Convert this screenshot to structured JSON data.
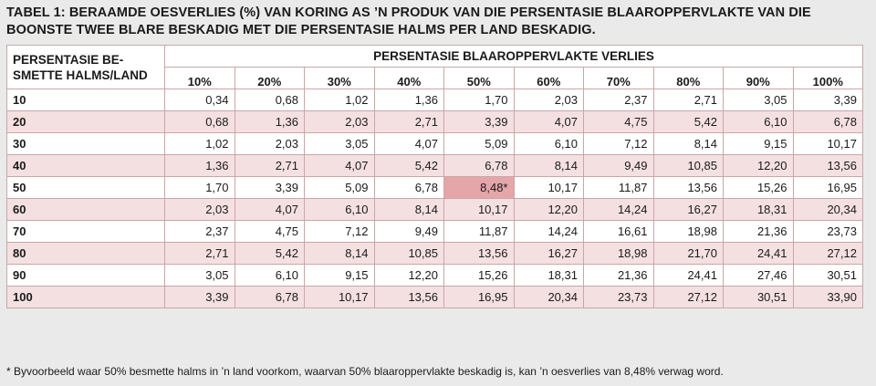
{
  "caption": "TABEL 1: BERAAMDE OESVERLIES (%) VAN KORING AS ’N PRODUK VAN DIE PERSENTASIE BLAAROPPERVLAKTE VAN DIE BOONSTE TWEE BLARE BESKADIG MET DIE PERSENTASIE HALMS PER LAND BESKADIG.",
  "table": {
    "row_header_title": "PERSENTASIE BE-SMETTE HALMS/LAND",
    "column_group_title": "PERSENTASIE BLAAROPPERVLAKTE VERLIES",
    "columns": [
      "10%",
      "20%",
      "30%",
      "40%",
      "50%",
      "60%",
      "70%",
      "80%",
      "90%",
      "100%"
    ],
    "rows": [
      {
        "label": "10",
        "values": [
          "0,34",
          "0,68",
          "1,02",
          "1,36",
          "1,70",
          "2,03",
          "2,37",
          "2,71",
          "3,05",
          "3,39"
        ]
      },
      {
        "label": "20",
        "values": [
          "0,68",
          "1,36",
          "2,03",
          "2,71",
          "3,39",
          "4,07",
          "4,75",
          "5,42",
          "6,10",
          "6,78"
        ]
      },
      {
        "label": "30",
        "values": [
          "1,02",
          "2,03",
          "3,05",
          "4,07",
          "5,09",
          "6,10",
          "7,12",
          "8,14",
          "9,15",
          "10,17"
        ]
      },
      {
        "label": "40",
        "values": [
          "1,36",
          "2,71",
          "4,07",
          "5,42",
          "6,78",
          "8,14",
          "9,49",
          "10,85",
          "12,20",
          "13,56"
        ]
      },
      {
        "label": "50",
        "values": [
          "1,70",
          "3,39",
          "5,09",
          "6,78",
          "8,48*",
          "10,17",
          "11,87",
          "13,56",
          "15,26",
          "16,95"
        ]
      },
      {
        "label": "60",
        "values": [
          "2,03",
          "4,07",
          "6,10",
          "8,14",
          "10,17",
          "12,20",
          "14,24",
          "16,27",
          "18,31",
          "20,34"
        ]
      },
      {
        "label": "70",
        "values": [
          "2,37",
          "4,75",
          "7,12",
          "9,49",
          "11,87",
          "14,24",
          "16,61",
          "18,98",
          "21,36",
          "23,73"
        ]
      },
      {
        "label": "80",
        "values": [
          "2,71",
          "5,42",
          "8,14",
          "10,85",
          "13,56",
          "16,27",
          "18,98",
          "21,70",
          "24,41",
          "27,12"
        ]
      },
      {
        "label": "90",
        "values": [
          "3,05",
          "6,10",
          "9,15",
          "12,20",
          "15,26",
          "18,31",
          "21,36",
          "24,41",
          "27,46",
          "30,51"
        ]
      },
      {
        "label": "100",
        "values": [
          "3,39",
          "6,78",
          "10,17",
          "13,56",
          "16,95",
          "20,34",
          "23,73",
          "27,12",
          "30,51",
          "33,90"
        ]
      }
    ],
    "highlight_cell": {
      "row": 4,
      "col": 4
    }
  },
  "footnote": "* Byvoorbeeld waar 50% besmette halms in ’n land voorkom, waarvan 50% blaaroppervlakte beskadig is, kan ’n oesverlies van 8,48% verwag word.",
  "colors": {
    "background": "#eaeaea",
    "row_stripe": "#f5e0e1",
    "highlight": "#e5a6a9",
    "border": "#c9a6a8"
  }
}
